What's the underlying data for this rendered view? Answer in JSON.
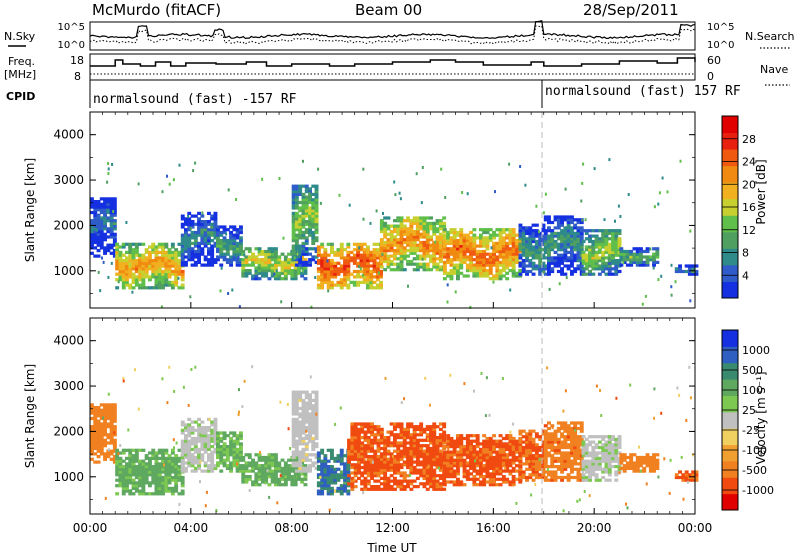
{
  "header": {
    "station": "McMurdo (fitACF)",
    "beam": "Beam 00",
    "date": "28/Sep/2011"
  },
  "noise_panel": {
    "left_label": "N.Sky",
    "right_label": "N.Search",
    "left_ticks": [
      "10^5",
      "10^0"
    ],
    "right_ticks": [
      "10^5",
      "10^0"
    ]
  },
  "freq_panel": {
    "left_label": "Freq.",
    "left_unit": "[MHz]",
    "right_label": "Nave",
    "left_ticks": [
      "18",
      "8"
    ],
    "right_ticks": [
      "60",
      "0"
    ]
  },
  "cpid_panel": {
    "label": "CPID",
    "segments": [
      {
        "text": "normalsound (fast) -157 RF",
        "start": "00:00"
      },
      {
        "text": "normalsound (fast) 157 RF",
        "start": "18:00"
      }
    ]
  },
  "time_axis": {
    "label": "Time UT",
    "ticks": [
      "00:00",
      "04:00",
      "08:00",
      "12:00",
      "16:00",
      "20:00",
      "00:00"
    ]
  },
  "power_panel": {
    "ylabel": "Slant Range [km]",
    "yticks": [
      "1000",
      "2000",
      "3000",
      "4000"
    ],
    "colorbar": {
      "label": "Power [dB]",
      "ticks": [
        "4",
        "8",
        "12",
        "16",
        "20",
        "24",
        "28"
      ],
      "colors": [
        "#1530e0",
        "#2f5cc8",
        "#2f8a8a",
        "#4fa060",
        "#5fbf4a",
        "#c8d030",
        "#f0b020",
        "#f08a10",
        "#f05a10",
        "#e82010",
        "#e00000"
      ]
    }
  },
  "velocity_panel": {
    "ylabel": "Slant Range [km]",
    "yticks": [
      "1000",
      "2000",
      "3000",
      "4000"
    ],
    "colorbar": {
      "label": "Velocity [m s⁻¹]",
      "ticks": [
        "1000",
        "500",
        "100",
        "25",
        "-25",
        "-100",
        "-500",
        "-1000"
      ],
      "colors": [
        "#1530e0",
        "#2f5fc0",
        "#3a8a70",
        "#5fa860",
        "#7cc850",
        "#c0c0c0",
        "#f0d060",
        "#f0a030",
        "#f08020",
        "#f04a10",
        "#e00000"
      ]
    }
  },
  "chart_data": [
    {
      "type": "heatmap",
      "title": "Power",
      "xlabel": "Time UT",
      "ylabel": "Slant Range [km]",
      "xlim": [
        "00:00",
        "24:00"
      ],
      "ylim": [
        180,
        4500
      ],
      "colorbar_label": "Power [dB]",
      "colorbar_ticks": [
        4,
        8,
        12,
        16,
        20,
        24,
        28
      ],
      "echo_regions": [
        {
          "t_start": 0.0,
          "t_end": 1.0,
          "r_low": 1300,
          "r_high": 2600,
          "power": 6
        },
        {
          "t_start": 1.0,
          "t_end": 3.6,
          "r_low": 600,
          "r_high": 1600,
          "power": 22
        },
        {
          "t_start": 3.6,
          "t_end": 5.0,
          "r_low": 1100,
          "r_high": 2300,
          "power": 8
        },
        {
          "t_start": 5.0,
          "t_end": 6.0,
          "r_low": 1100,
          "r_high": 2000,
          "power": 10
        },
        {
          "t_start": 6.0,
          "t_end": 8.5,
          "r_low": 800,
          "r_high": 1500,
          "power": 18
        },
        {
          "t_start": 8.0,
          "t_end": 9.0,
          "r_low": 1100,
          "r_high": 2900,
          "power": 14
        },
        {
          "t_start": 9.0,
          "t_end": 11.5,
          "r_low": 600,
          "r_high": 1600,
          "power": 27
        },
        {
          "t_start": 11.5,
          "t_end": 14.0,
          "r_low": 1000,
          "r_high": 2200,
          "power": 23
        },
        {
          "t_start": 14.0,
          "t_end": 17.0,
          "r_low": 800,
          "r_high": 1900,
          "power": 25
        },
        {
          "t_start": 17.0,
          "t_end": 18.0,
          "r_low": 900,
          "r_high": 2000,
          "power": 10
        },
        {
          "t_start": 18.0,
          "t_end": 19.5,
          "r_low": 900,
          "r_high": 2200,
          "power": 9
        },
        {
          "t_start": 19.5,
          "t_end": 21.0,
          "r_low": 900,
          "r_high": 1900,
          "power": 16
        },
        {
          "t_start": 21.0,
          "t_end": 22.5,
          "r_low": 1100,
          "r_high": 1500,
          "power": 12
        },
        {
          "t_start": 23.2,
          "t_end": 24.0,
          "r_low": 900,
          "r_high": 1100,
          "power": 8
        }
      ]
    },
    {
      "type": "heatmap",
      "title": "Velocity",
      "xlabel": "Time UT",
      "ylabel": "Slant Range [km]",
      "xlim": [
        "00:00",
        "24:00"
      ],
      "ylim": [
        180,
        4500
      ],
      "colorbar_label": "Velocity [m s⁻¹]",
      "colorbar_ticks": [
        1000,
        500,
        100,
        25,
        -25,
        -100,
        -500,
        -1000
      ],
      "echo_regions": [
        {
          "t_start": 0.0,
          "t_end": 1.0,
          "r_low": 1300,
          "r_high": 2600,
          "velocity": -150
        },
        {
          "t_start": 1.0,
          "t_end": 3.6,
          "r_low": 600,
          "r_high": 1600,
          "velocity": 300
        },
        {
          "t_start": 3.6,
          "t_end": 5.0,
          "r_low": 1100,
          "r_high": 2300,
          "velocity": 80
        },
        {
          "t_start": 5.0,
          "t_end": 6.0,
          "r_low": 1100,
          "r_high": 2000,
          "velocity": 250
        },
        {
          "t_start": 6.0,
          "t_end": 8.5,
          "r_low": 800,
          "r_high": 1500,
          "velocity": 300
        },
        {
          "t_start": 8.0,
          "t_end": 9.0,
          "r_low": 1100,
          "r_high": 2900,
          "velocity": 60
        },
        {
          "t_start": 9.0,
          "t_end": 10.2,
          "r_low": 600,
          "r_high": 1600,
          "velocity": 700
        },
        {
          "t_start": 10.2,
          "t_end": 14.0,
          "r_low": 700,
          "r_high": 2200,
          "velocity": -300
        },
        {
          "t_start": 14.0,
          "t_end": 17.0,
          "r_low": 800,
          "r_high": 1900,
          "velocity": -300
        },
        {
          "t_start": 17.0,
          "t_end": 18.0,
          "r_low": 900,
          "r_high": 2000,
          "velocity": -250
        },
        {
          "t_start": 18.0,
          "t_end": 19.5,
          "r_low": 900,
          "r_high": 2200,
          "velocity": -200
        },
        {
          "t_start": 19.5,
          "t_end": 21.0,
          "r_low": 900,
          "r_high": 1900,
          "velocity": 80
        },
        {
          "t_start": 21.0,
          "t_end": 22.5,
          "r_low": 1100,
          "r_high": 1500,
          "velocity": -150
        },
        {
          "t_start": 23.2,
          "t_end": 24.0,
          "r_low": 900,
          "r_high": 1100,
          "velocity": -250
        }
      ]
    }
  ]
}
